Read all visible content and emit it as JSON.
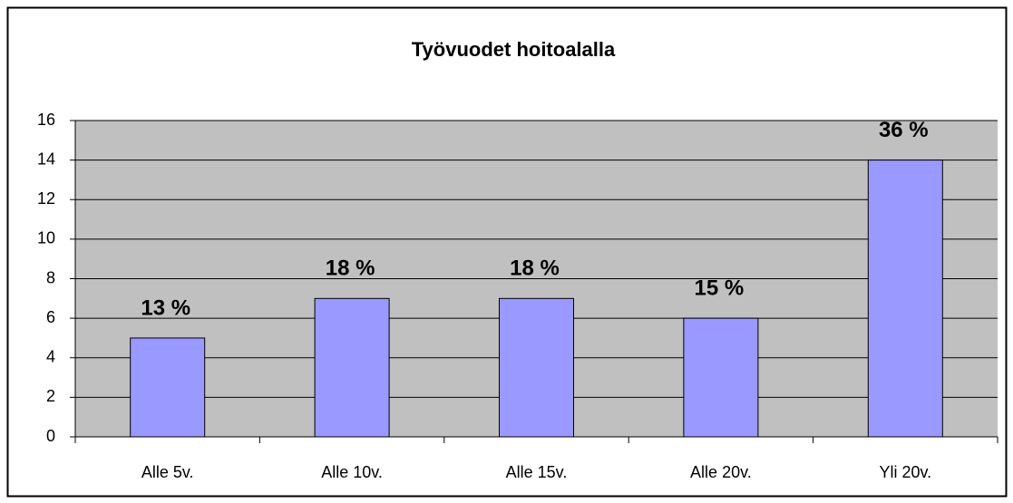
{
  "chart_data": {
    "type": "bar",
    "title": "Työvuodet hoitoalalla",
    "categories": [
      "Alle 5v.",
      "Alle 10v.",
      "Alle 15v.",
      "Alle 20v.",
      "Yli 20v."
    ],
    "values": [
      5,
      7,
      7,
      6,
      14
    ],
    "value_labels": [
      "13 %",
      "18 %",
      "18 %",
      "15 %",
      "36 %"
    ],
    "color": "#9999ff",
    "ylim": [
      0,
      16
    ],
    "yticks": [
      0,
      2,
      4,
      6,
      8,
      10,
      12,
      14,
      16
    ],
    "grid": true
  }
}
